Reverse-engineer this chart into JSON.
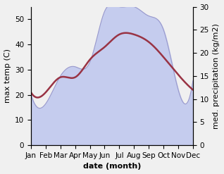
{
  "months": [
    "Jan",
    "Feb",
    "Mar",
    "Apr",
    "May",
    "Jun",
    "Jul",
    "Aug",
    "Sep",
    "Oct",
    "Nov",
    "Dec"
  ],
  "temp": [
    21,
    21,
    27,
    27,
    34,
    39,
    44,
    44,
    41,
    35,
    28,
    22
  ],
  "precip": [
    11,
    9,
    15,
    17,
    18,
    29,
    30,
    30,
    28,
    25,
    12,
    14
  ],
  "temp_color": "#993344",
  "precip_fill_color": "#c5ccee",
  "precip_line_color": "#9999cc",
  "ylabel_left": "max temp (C)",
  "ylabel_right": "med. precipitation (kg/m2)",
  "xlabel": "date (month)",
  "ylim_left": [
    0,
    55
  ],
  "ylim_right": [
    0,
    30
  ],
  "yticks_left": [
    0,
    10,
    20,
    30,
    40,
    50
  ],
  "yticks_right": [
    0,
    5,
    10,
    15,
    20,
    25,
    30
  ],
  "bg_color": "#f0f0f0",
  "label_fontsize": 8,
  "tick_fontsize": 7.5
}
